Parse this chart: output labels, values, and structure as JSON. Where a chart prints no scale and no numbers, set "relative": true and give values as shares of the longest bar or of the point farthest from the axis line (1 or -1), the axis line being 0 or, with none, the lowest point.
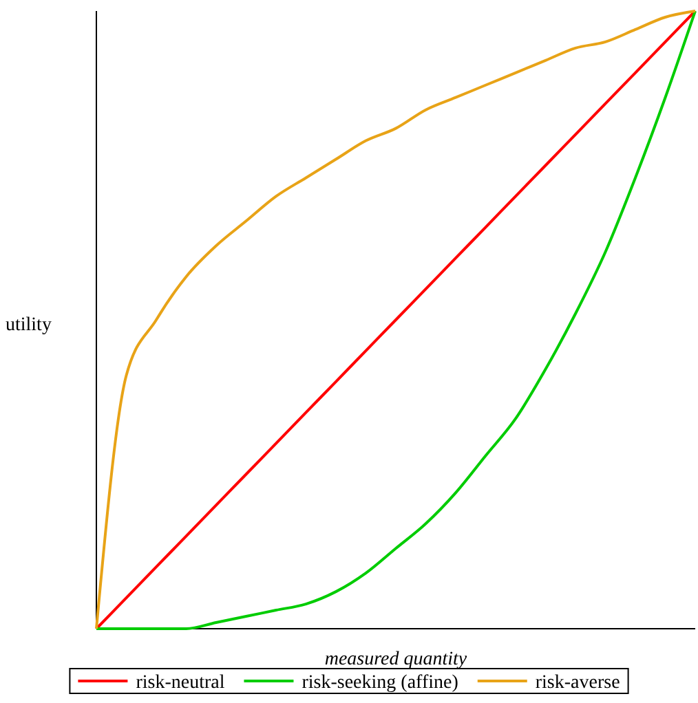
{
  "chart_data": {
    "type": "line",
    "relative": true,
    "xlabel": "measured quantity",
    "ylabel": "utility",
    "legend": "bottom",
    "grid": false,
    "marker": "none",
    "line_style": "solid",
    "categories": [
      null,
      null,
      null,
      null,
      null,
      null,
      null,
      null,
      null,
      null,
      null,
      null,
      null,
      null,
      null,
      null,
      null,
      null,
      null,
      null,
      null
    ],
    "series": [
      {
        "name": "risk-neutral",
        "color": "#ff0000",
        "values": [
          0,
          0.05,
          0.1,
          0.15,
          0.2,
          0.25,
          0.3,
          0.35,
          0.4,
          0.45,
          0.5,
          0.55,
          0.6,
          0.65,
          0.7,
          0.75,
          0.8,
          0.85,
          0.9,
          0.95,
          1
        ]
      },
      {
        "name": "risk-seeking (affine)",
        "color": "#00cc00",
        "values": [
          0,
          0,
          0,
          0,
          0.01,
          0.02,
          0.03,
          0.04,
          0.06,
          0.09,
          0.13,
          0.17,
          0.22,
          0.28,
          0.34,
          0.42,
          0.51,
          0.61,
          0.73,
          0.86,
          1
        ]
      },
      {
        "name": "risk-averse",
        "color": "#e8a317",
        "values": [
          0,
          0.41,
          0.5,
          0.57,
          0.62,
          0.66,
          0.7,
          0.73,
          0.76,
          0.79,
          0.81,
          0.84,
          0.86,
          0.88,
          0.9,
          0.92,
          0.94,
          0.95,
          0.97,
          0.99,
          1
        ]
      }
    ]
  }
}
